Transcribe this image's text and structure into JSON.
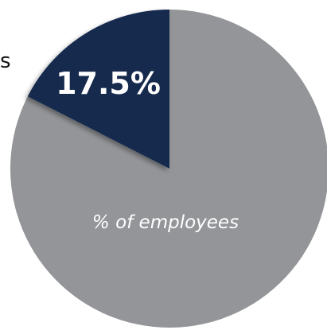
{
  "chart_data": {
    "type": "pie",
    "slices": [
      {
        "label": "17.5%",
        "value": 17.5,
        "color": "#12294d"
      },
      {
        "label": "",
        "value": 82.5,
        "color": "#939598"
      }
    ],
    "annotation": "% of employees",
    "legend": "none"
  },
  "edge_text": "s"
}
